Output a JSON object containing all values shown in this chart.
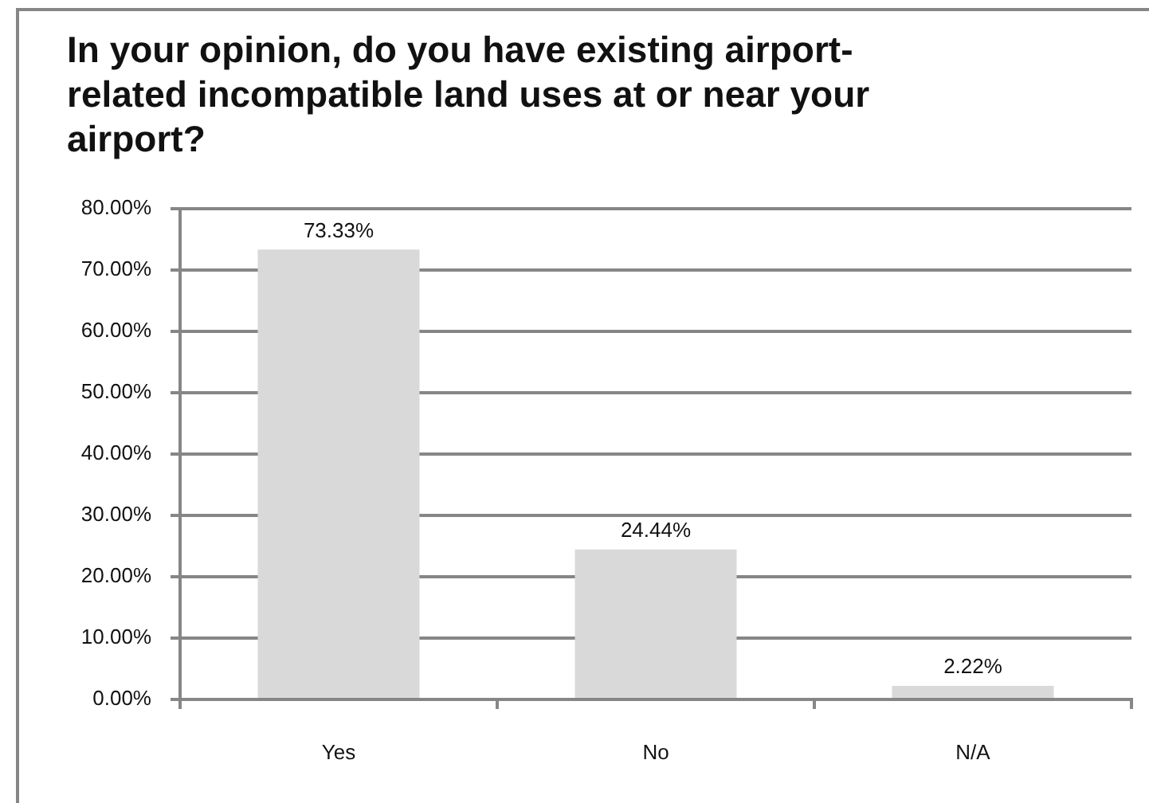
{
  "chart_data": {
    "type": "bar",
    "title": "In your opinion, do you have existing airport-related incompatible land uses at or near your airport?",
    "categories": [
      "Yes",
      "No",
      "N/A"
    ],
    "values": [
      73.33,
      24.44,
      2.22
    ],
    "value_labels": [
      "73.33%",
      "24.44%",
      "2.22%"
    ],
    "color": "#d9d9d9",
    "ylim": [
      0,
      80
    ],
    "yticks": [
      {
        "value": 0,
        "label": "0.00%"
      },
      {
        "value": 10,
        "label": "10.00%"
      },
      {
        "value": 20,
        "label": "20.00%"
      },
      {
        "value": 30,
        "label": "30.00%"
      },
      {
        "value": 40,
        "label": "40.00%"
      },
      {
        "value": 50,
        "label": "50.00%"
      },
      {
        "value": 60,
        "label": "60.00%"
      },
      {
        "value": 70,
        "label": "70.00%"
      },
      {
        "value": 80,
        "label": "80.00%"
      }
    ],
    "grid": "y"
  }
}
